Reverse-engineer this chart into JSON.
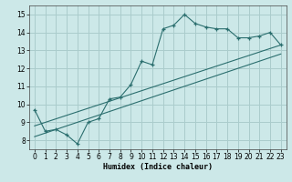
{
  "xlabel": "Humidex (Indice chaleur)",
  "bg_color": "#cce8e8",
  "grid_color": "#aacccc",
  "line_color": "#2a6e6e",
  "xlim": [
    -0.5,
    23.5
  ],
  "ylim": [
    7.5,
    15.5
  ],
  "xticks": [
    0,
    1,
    2,
    3,
    4,
    5,
    6,
    7,
    8,
    9,
    10,
    11,
    12,
    13,
    14,
    15,
    16,
    17,
    18,
    19,
    20,
    21,
    22,
    23
  ],
  "yticks": [
    8,
    9,
    10,
    11,
    12,
    13,
    14,
    15
  ],
  "main_x": [
    0,
    1,
    2,
    3,
    4,
    5,
    6,
    7,
    8,
    9,
    10,
    11,
    12,
    13,
    14,
    15,
    16,
    17,
    18,
    19,
    20,
    21,
    22,
    23
  ],
  "main_y": [
    9.7,
    8.5,
    8.6,
    8.3,
    7.8,
    9.0,
    9.2,
    10.3,
    10.4,
    11.1,
    12.4,
    12.2,
    14.2,
    14.4,
    15.0,
    14.5,
    14.3,
    14.2,
    14.2,
    13.7,
    13.7,
    13.8,
    14.0,
    13.3
  ],
  "line2_x": [
    0,
    23
  ],
  "line2_y": [
    8.8,
    13.3
  ],
  "line3_x": [
    0,
    23
  ],
  "line3_y": [
    8.2,
    12.8
  ]
}
